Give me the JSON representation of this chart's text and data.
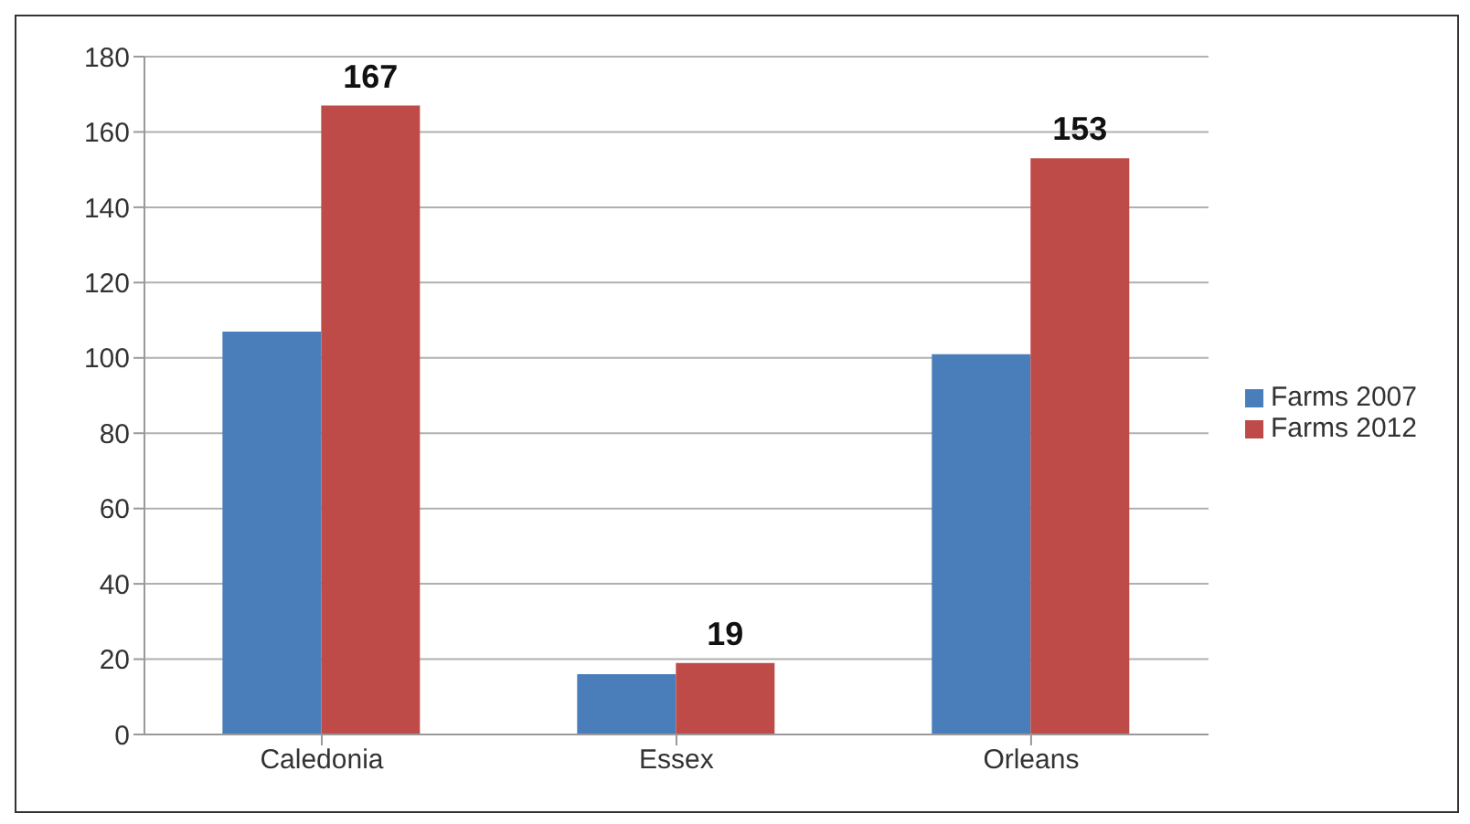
{
  "chart_data": {
    "type": "bar",
    "categories": [
      "Caledonia",
      "Essex",
      "Orleans"
    ],
    "series": [
      {
        "name": "Farms 2007",
        "color": "#4a7ebb",
        "values": [
          107,
          16,
          101
        ]
      },
      {
        "name": "Farms 2012",
        "color": "#be4b48",
        "values": [
          167,
          19,
          153
        ],
        "value_labels": [
          "167",
          "19",
          "153"
        ]
      }
    ],
    "ylim": [
      0,
      180
    ],
    "yticks": [
      0,
      20,
      40,
      60,
      80,
      100,
      120,
      140,
      160,
      180
    ],
    "grid": "y",
    "legend": "right"
  }
}
